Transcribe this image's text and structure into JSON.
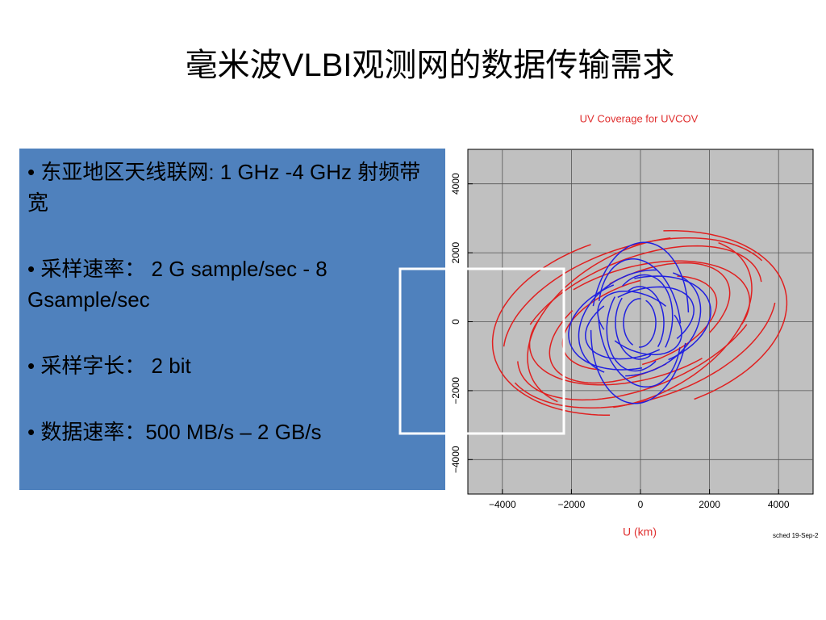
{
  "slide": {
    "title": "毫米波VLBI观测网的数据传输需求",
    "bullets": [
      "•  东亚地区天线联网:  1 GHz -4 GHz 射频带宽",
      "•  采样速率：  2 G sample/sec - 8 Gsample/sec",
      "•  采样字长：  2 bit",
      "• 数据速率：500 MB/s – 2 GB/s"
    ]
  },
  "chart_data": {
    "type": "uv-coverage",
    "title": "UV Coverage for UVCOV",
    "xlabel": "U (km)",
    "footer": "sched 19-Sep-2",
    "xlim": [
      -5000,
      5000
    ],
    "ylim": [
      -5000,
      5000
    ],
    "xticks": [
      {
        "value": -4000,
        "label": "−4000"
      },
      {
        "value": -2000,
        "label": "−2000"
      },
      0,
      2000,
      4000
    ],
    "yticks": [
      {
        "value": -4000,
        "label": "−4000"
      },
      {
        "value": -2000,
        "label": "−2000"
      },
      0,
      2000,
      4000
    ],
    "grid": true
  }
}
